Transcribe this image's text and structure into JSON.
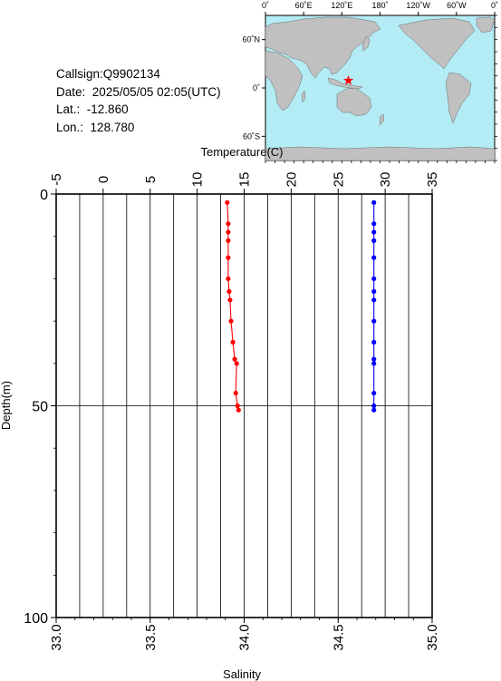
{
  "meta": {
    "callsign_label": "Callsign:",
    "callsign": "Q9902134",
    "date_label": "Date:",
    "date": "2025/05/05 02:05(UTC)",
    "lat_label": "Lat.:",
    "lat": "-12.860",
    "lon_label": "Lon.:",
    "lon": "128.780"
  },
  "map": {
    "lon_ticks": [
      "0˚",
      "60˚E",
      "120˚E",
      "180˚",
      "120˚W",
      "60˚W",
      "0˚"
    ],
    "lat_ticks": [
      "60˚N",
      "0˚",
      "60˚S"
    ],
    "ocean_color": "#b4ecf5",
    "land_color": "#c0c0c0",
    "marker_color": "#ff0000",
    "marker_icon": "star-icon",
    "marker_lon": 128.78,
    "marker_lat": -12.86
  },
  "chart_data": {
    "type": "line",
    "title": "",
    "ylabel": "Depth(m)",
    "ylim": [
      0,
      100
    ],
    "y_inverted": true,
    "y_ticks": [
      "0",
      "50",
      "100"
    ],
    "y_tick_values": [
      0,
      50,
      100
    ],
    "grid": true,
    "top_axis": {
      "label": "Temperature(C)",
      "range": [
        -5,
        35
      ],
      "ticks": [
        "-5",
        "0",
        "5",
        "10",
        "15",
        "20",
        "25",
        "30",
        "35"
      ],
      "tick_values": [
        -5,
        0,
        5,
        10,
        15,
        20,
        25,
        30,
        35
      ]
    },
    "bottom_axis": {
      "label": "Salinity",
      "range": [
        33.0,
        35.0
      ],
      "ticks": [
        "33.0",
        "33.5",
        "34.0",
        "34.5",
        "35.0"
      ],
      "tick_values": [
        33.0,
        33.5,
        34.0,
        34.5,
        35.0
      ]
    },
    "series": [
      {
        "axis": "top",
        "color": "#ff0000",
        "depth": [
          2,
          7,
          9,
          11,
          15,
          20,
          23,
          25,
          30,
          35,
          39,
          40,
          47,
          50,
          51
        ],
        "values": [
          13.2,
          13.3,
          13.3,
          13.3,
          13.3,
          13.3,
          13.4,
          13.5,
          13.6,
          13.8,
          14.0,
          14.2,
          14.1,
          14.3,
          14.4
        ]
      },
      {
        "axis": "bottom",
        "color": "#0000ff",
        "depth": [
          2,
          7,
          9,
          11,
          15,
          20,
          23,
          25,
          30,
          35,
          39,
          40,
          47,
          50,
          51
        ],
        "values": [
          34.69,
          34.69,
          34.69,
          34.69,
          34.69,
          34.69,
          34.69,
          34.69,
          34.69,
          34.69,
          34.69,
          34.69,
          34.69,
          34.69,
          34.69
        ]
      }
    ]
  }
}
